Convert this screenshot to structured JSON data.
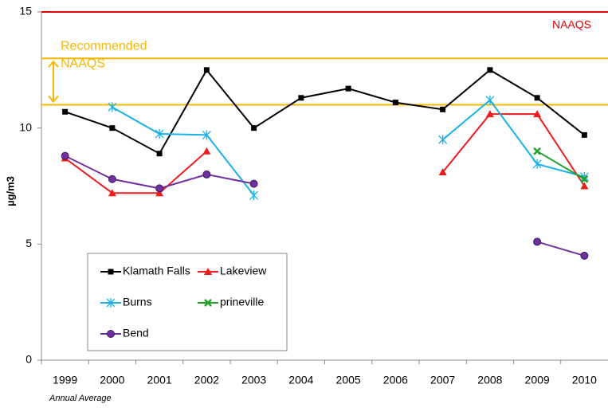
{
  "chart_data": {
    "type": "line",
    "y_label": "µg/m3",
    "footnote": "Annual Average",
    "categories": [
      "1999",
      "2000",
      "2001",
      "2002",
      "2003",
      "2004",
      "2005",
      "2006",
      "2007",
      "2008",
      "2009",
      "2010"
    ],
    "ylim": [
      0,
      15
    ],
    "yticks": [
      0,
      5,
      10,
      15
    ],
    "grid": false,
    "legend": "lower left",
    "series": [
      {
        "name": "Klamath Falls",
        "color": "#000000",
        "marker": "square",
        "values": [
          10.7,
          10.0,
          8.9,
          12.5,
          10.0,
          11.3,
          11.7,
          11.1,
          10.8,
          12.5,
          11.3,
          9.7
        ]
      },
      {
        "name": "Lakeview",
        "color": "#ee1c1c",
        "marker": "triangle",
        "values": [
          8.7,
          7.2,
          7.2,
          9.0,
          null,
          null,
          null,
          null,
          8.1,
          10.6,
          10.6,
          7.5
        ]
      },
      {
        "name": "Burns",
        "color": "#1ab0e8",
        "marker": "asterisk",
        "values": [
          null,
          10.9,
          9.75,
          9.7,
          7.1,
          null,
          null,
          null,
          9.5,
          11.2,
          8.45,
          7.9
        ]
      },
      {
        "name": "prineville",
        "color": "#22a02a",
        "marker": "x",
        "values": [
          null,
          null,
          null,
          null,
          null,
          null,
          null,
          null,
          null,
          null,
          9.0,
          7.8
        ]
      },
      {
        "name": "Bend",
        "color": "#7030a0",
        "marker": "circle",
        "values": [
          8.8,
          7.8,
          7.4,
          8.0,
          7.6,
          null,
          null,
          null,
          null,
          null,
          5.1,
          4.5
        ]
      }
    ],
    "reference_lines": [
      {
        "value": 15,
        "color": "#e00000",
        "label": "NAAQS"
      },
      {
        "value": 13,
        "color": "#f5b800"
      },
      {
        "value": 11,
        "color": "#f5b800"
      }
    ],
    "recommended_label": [
      "Recommended",
      "NAAQS"
    ],
    "recommended_color": "#f5b800"
  }
}
